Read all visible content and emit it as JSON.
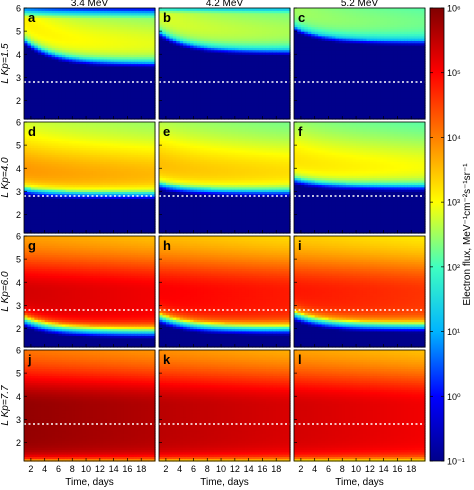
{
  "chart_data": {
    "type": "heatmap",
    "columns": [
      "3.4 MeV",
      "4.2 MeV",
      "5.2 MeV"
    ],
    "rows": [
      {
        "ylabel": "L Kp=1.5",
        "panels": [
          "a",
          "b",
          "c"
        ]
      },
      {
        "ylabel": "L Kp=4.0",
        "panels": [
          "d",
          "e",
          "f"
        ]
      },
      {
        "ylabel": "L Kp=6.0",
        "panels": [
          "g",
          "h",
          "i"
        ]
      },
      {
        "ylabel": "L Kp=7.7",
        "panels": [
          "j",
          "k",
          "l"
        ]
      }
    ],
    "xlabel": "Time, days",
    "x_ticks": [
      "2",
      "4",
      "6",
      "8",
      "10",
      "12",
      "14",
      "16",
      "18"
    ],
    "x_tick_values": [
      2,
      4,
      6,
      8,
      10,
      12,
      14,
      16,
      18
    ],
    "xlim": [
      1,
      20
    ],
    "y_ticks": [
      "2",
      "3",
      "4",
      "5",
      "6"
    ],
    "y_tick_values": [
      2,
      3,
      4,
      5,
      6
    ],
    "ylim": [
      1.2,
      6
    ],
    "reference_line_L": 2.8,
    "colorbar": {
      "label": "Electron flux, MeV⁻¹cm⁻²s⁻¹sr⁻¹",
      "scale": "log",
      "ticks": [
        "10⁶",
        "10⁵",
        "10⁴",
        "10³",
        "10²",
        "10¹",
        "10⁰",
        "10⁻¹"
      ],
      "tick_values": [
        1000000,
        100000,
        10000,
        1000,
        100,
        10,
        1,
        0.1
      ],
      "range": [
        0.1,
        1000000
      ],
      "colors": [
        "#00008b",
        "#0000ff",
        "#00b4ff",
        "#40ffc0",
        "#ffff00",
        "#ff8000",
        "#ff0000",
        "#800000"
      ]
    },
    "panel_model": {
      "description_values": "log10 peak flux at L~3.5-4, slot-region inward edge Lmin decays from start to end over the time axis",
      "params": [
        [
          {
            "peak": 2.9,
            "Lstart": 4.7,
            "Lend": 3.7,
            "Lmax": 5.6
          },
          {
            "peak": 2.6,
            "Lstart": 5.0,
            "Lend": 4.2,
            "Lmax": 5.8
          },
          {
            "peak": 2.3,
            "Lstart": 5.2,
            "Lend": 4.6,
            "Lmax": 6.0
          }
        ],
        [
          {
            "peak": 3.6,
            "Lstart": 3.2,
            "Lend": 3.0,
            "Lmax": 6.2
          },
          {
            "peak": 3.3,
            "Lstart": 3.4,
            "Lend": 3.1,
            "Lmax": 6.2
          },
          {
            "peak": 3.0,
            "Lstart": 3.6,
            "Lend": 3.3,
            "Lmax": 6.2
          }
        ],
        [
          {
            "peak": 5.1,
            "Lstart": 2.6,
            "Lend": 2.1,
            "Lmax": 6.2
          },
          {
            "peak": 4.8,
            "Lstart": 2.7,
            "Lend": 2.2,
            "Lmax": 6.2
          },
          {
            "peak": 4.6,
            "Lstart": 2.8,
            "Lend": 2.3,
            "Lmax": 6.2
          }
        ],
        [
          {
            "peak": 5.6,
            "Lstart": 1.3,
            "Lend": 1.3,
            "Lmax": 6.2
          },
          {
            "peak": 5.3,
            "Lstart": 1.3,
            "Lend": 1.3,
            "Lmax": 6.2
          },
          {
            "peak": 5.1,
            "Lstart": 1.3,
            "Lend": 1.3,
            "Lmax": 6.2
          }
        ]
      ]
    }
  }
}
